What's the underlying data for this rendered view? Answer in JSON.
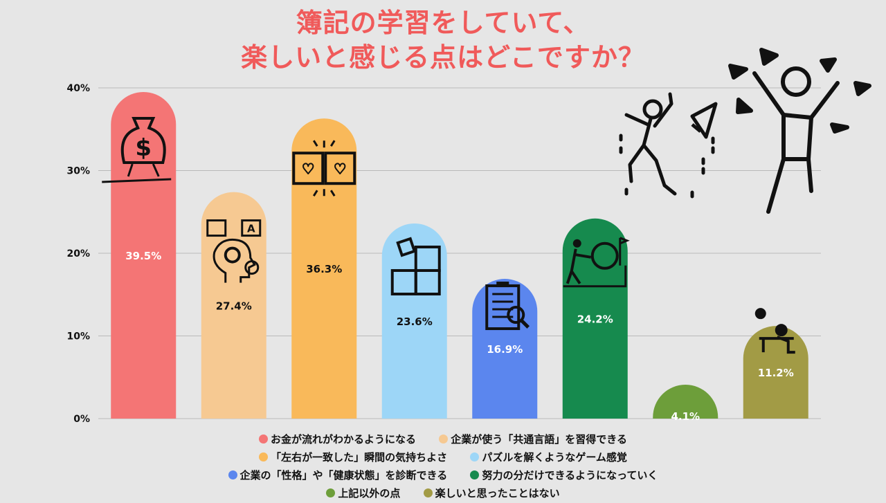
{
  "title_lines": [
    "簿記の学習をしていて、",
    "楽しいと感じる点はどこですか？"
  ],
  "chart_data": {
    "type": "bar",
    "ylim": [
      0,
      40
    ],
    "yticks": [
      "0%",
      "10%",
      "20%",
      "30%",
      "40%"
    ],
    "grid": true,
    "legend_position": "bottom",
    "categories": [
      "お金が流れがわかるようになる",
      "企業が使う「共通言語」を習得できる",
      "「左右が一致した」瞬間の気持ちよさ",
      "パズルを解くようなゲーム感覚",
      "企業の「性格」や「健康状態」を診断できる",
      "努力の分だけできるようになっていく",
      "上記以外の点",
      "楽しいと思ったことはない"
    ],
    "values": [
      39.5,
      27.4,
      36.3,
      23.6,
      16.9,
      24.2,
      4.1,
      11.2
    ],
    "value_labels": [
      "39.5%",
      "27.4%",
      "36.3%",
      "23.6%",
      "16.9%",
      "24.2%",
      "4.1%",
      "11.2%"
    ],
    "colors": [
      "#f47575",
      "#f6c992",
      "#f9b95a",
      "#9dd6f7",
      "#5b86ee",
      "#168a4e",
      "#6d9e3a",
      "#a29b45"
    ],
    "label_colors": [
      "#ffffff",
      "#111111",
      "#111111",
      "#111111",
      "#ffffff",
      "#ffffff",
      "#ffffff",
      "#ffffff"
    ],
    "icons": [
      "money-bag-icon",
      "language-head-icon",
      "puzzle-heart-icon",
      "puzzle-icon",
      "clipboard-search-icon",
      "push-boulder-icon",
      "",
      "desk-clock-icon"
    ]
  },
  "decorations": [
    "jumping-person-icon",
    "party-popper-icon",
    "cheering-person-icon"
  ]
}
